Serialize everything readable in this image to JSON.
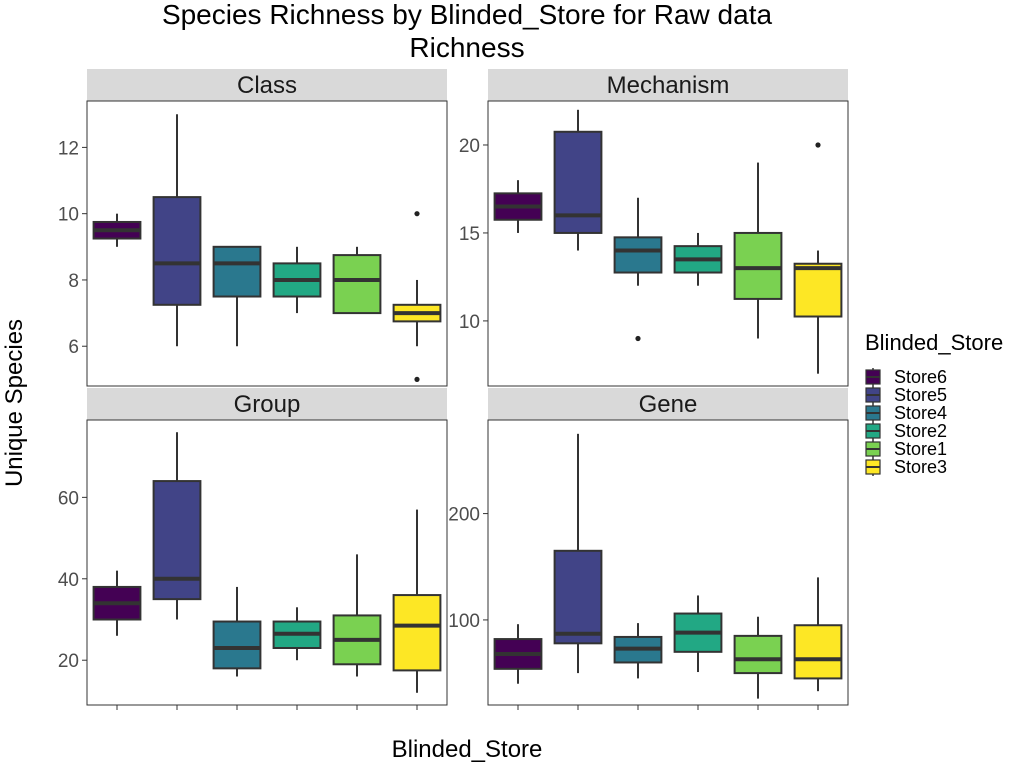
{
  "chart_data": {
    "type": "boxplot",
    "title_line1": "Species Richness by Blinded_Store for Raw data",
    "title_line2": "Richness",
    "xlabel": "Blinded_Store",
    "ylabel": "Unique Species",
    "legend_title": "Blinded_Store",
    "legend_placement": "right",
    "stores": [
      "Store6",
      "Store5",
      "Store4",
      "Store2",
      "Store1",
      "Store3"
    ],
    "colors": {
      "Store6": "#440154",
      "Store5": "#414487",
      "Store4": "#2A788E",
      "Store2": "#22A884",
      "Store1": "#7AD151",
      "Store3": "#FDE725"
    },
    "panels": [
      {
        "name": "Class",
        "ylim": [
          4.8,
          13.4
        ],
        "ticks": [
          6,
          8,
          10,
          12
        ],
        "boxes": [
          {
            "store": "Store6",
            "lower": 9,
            "q1": 9.25,
            "median": 9.5,
            "q3": 9.75,
            "upper": 10,
            "outliers": []
          },
          {
            "store": "Store5",
            "lower": 6,
            "q1": 7.25,
            "median": 8.5,
            "q3": 10.5,
            "upper": 13,
            "outliers": []
          },
          {
            "store": "Store4",
            "lower": 6,
            "q1": 7.5,
            "median": 8.5,
            "q3": 9,
            "upper": 9,
            "outliers": []
          },
          {
            "store": "Store2",
            "lower": 7,
            "q1": 7.5,
            "median": 8,
            "q3": 8.5,
            "upper": 9,
            "outliers": []
          },
          {
            "store": "Store1",
            "lower": 7,
            "q1": 7,
            "median": 8,
            "q3": 8.75,
            "upper": 9,
            "outliers": []
          },
          {
            "store": "Store3",
            "lower": 6,
            "q1": 6.75,
            "median": 7,
            "q3": 7.25,
            "upper": 8,
            "outliers": [
              10,
              5
            ]
          }
        ]
      },
      {
        "name": "Mechanism",
        "ylim": [
          6.3,
          22.5
        ],
        "ticks": [
          10,
          15,
          20
        ],
        "boxes": [
          {
            "store": "Store6",
            "lower": 15,
            "q1": 15.75,
            "median": 16.5,
            "q3": 17.25,
            "upper": 18,
            "outliers": []
          },
          {
            "store": "Store5",
            "lower": 14,
            "q1": 15,
            "median": 16,
            "q3": 20.75,
            "upper": 22,
            "outliers": []
          },
          {
            "store": "Store4",
            "lower": 12,
            "q1": 12.75,
            "median": 14,
            "q3": 14.75,
            "upper": 17,
            "outliers": [
              9
            ]
          },
          {
            "store": "Store2",
            "lower": 12,
            "q1": 12.75,
            "median": 13.5,
            "q3": 14.25,
            "upper": 15,
            "outliers": []
          },
          {
            "store": "Store1",
            "lower": 9,
            "q1": 11.25,
            "median": 13,
            "q3": 15,
            "upper": 19,
            "outliers": []
          },
          {
            "store": "Store3",
            "lower": 7,
            "q1": 10.25,
            "median": 13,
            "q3": 13.25,
            "upper": 14,
            "outliers": [
              20
            ]
          }
        ]
      },
      {
        "name": "Group",
        "ylim": [
          9,
          79
        ],
        "ticks": [
          20,
          40,
          60
        ],
        "boxes": [
          {
            "store": "Store6",
            "lower": 26,
            "q1": 30,
            "median": 34,
            "q3": 38,
            "upper": 42,
            "outliers": []
          },
          {
            "store": "Store5",
            "lower": 30,
            "q1": 35,
            "median": 40,
            "q3": 64,
            "upper": 76,
            "outliers": []
          },
          {
            "store": "Store4",
            "lower": 16,
            "q1": 18,
            "median": 23,
            "q3": 29.5,
            "upper": 38,
            "outliers": []
          },
          {
            "store": "Store2",
            "lower": 20,
            "q1": 23,
            "median": 26.5,
            "q3": 29.5,
            "upper": 33,
            "outliers": []
          },
          {
            "store": "Store1",
            "lower": 16,
            "q1": 19,
            "median": 25,
            "q3": 31,
            "upper": 46,
            "outliers": []
          },
          {
            "store": "Store3",
            "lower": 12,
            "q1": 17.5,
            "median": 28.5,
            "q3": 36,
            "upper": 57,
            "outliers": []
          }
        ]
      },
      {
        "name": "Gene",
        "ylim": [
          20,
          288
        ],
        "ticks": [
          100,
          200
        ],
        "boxes": [
          {
            "store": "Store6",
            "lower": 40,
            "q1": 54,
            "median": 68,
            "q3": 82,
            "upper": 96,
            "outliers": []
          },
          {
            "store": "Store5",
            "lower": 50,
            "q1": 78,
            "median": 87,
            "q3": 165,
            "upper": 275,
            "outliers": []
          },
          {
            "store": "Store4",
            "lower": 45,
            "q1": 60,
            "median": 73,
            "q3": 84,
            "upper": 97,
            "outliers": []
          },
          {
            "store": "Store2",
            "lower": 51,
            "q1": 70,
            "median": 88,
            "q3": 106,
            "upper": 123,
            "outliers": []
          },
          {
            "store": "Store1",
            "lower": 26,
            "q1": 50,
            "median": 63,
            "q3": 85,
            "upper": 103,
            "outliers": []
          },
          {
            "store": "Store3",
            "lower": 33,
            "q1": 45,
            "median": 63,
            "q3": 95,
            "upper": 140,
            "outliers": []
          }
        ]
      }
    ]
  }
}
